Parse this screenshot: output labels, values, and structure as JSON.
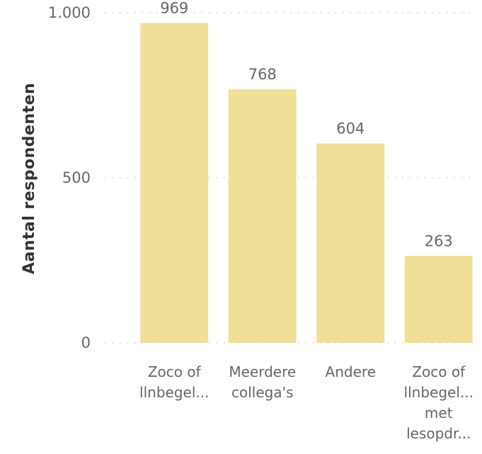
{
  "chart_data": {
    "type": "bar",
    "title": "",
    "xlabel": "",
    "ylabel": "Aantal respondenten",
    "categories": [
      [
        "Zoco of",
        "llnbegel..."
      ],
      [
        "Meerdere",
        "collega's"
      ],
      [
        "Andere"
      ],
      [
        "Zoco of",
        "llnbegel...",
        "met",
        "lesopdr..."
      ]
    ],
    "values": [
      969,
      768,
      604,
      263
    ],
    "data_labels": [
      "969",
      "768",
      "604",
      "263"
    ],
    "ylim": [
      0,
      1000
    ],
    "yticks": [
      0,
      500,
      1000
    ],
    "ytick_labels": [
      "0",
      "500",
      "1.000"
    ],
    "grid": true,
    "bar_color": "#efdf97",
    "grid_color": "#c8c8c8"
  }
}
